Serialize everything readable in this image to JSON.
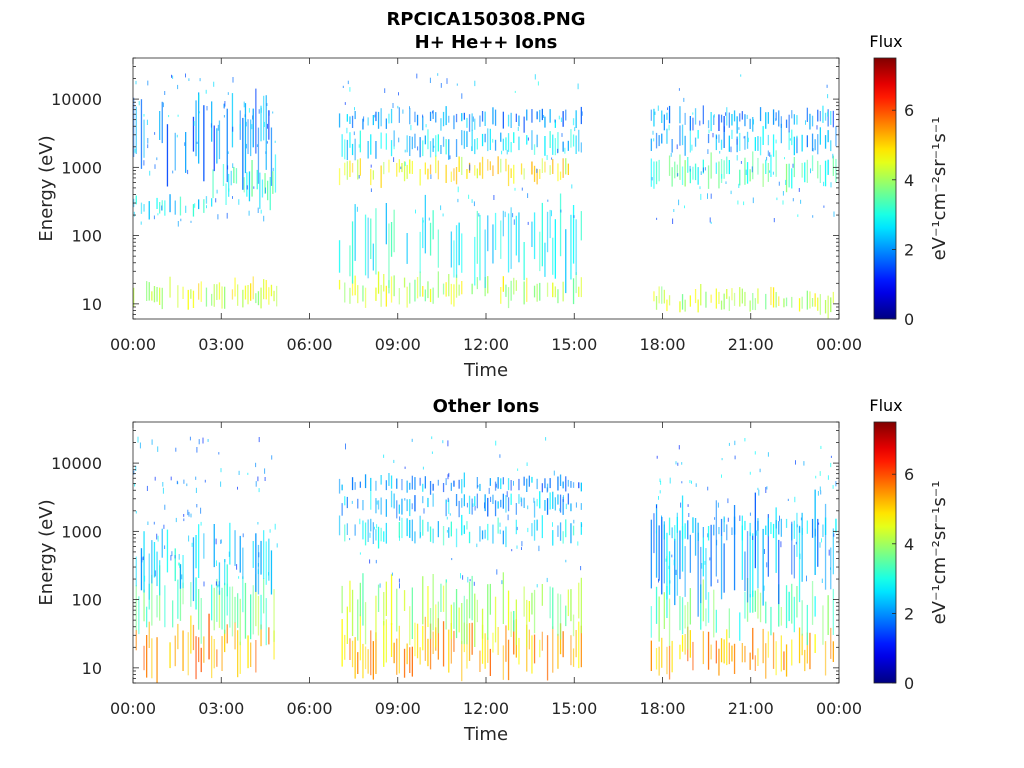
{
  "figure": {
    "title": "RPCICA150308.PNG"
  },
  "chart_data": [
    {
      "type": "heatmap",
      "title": "H+ He++ Ions",
      "xlabel": "Time",
      "ylabel": "Energy (eV)",
      "x_ticks": [
        "00:00",
        "03:00",
        "06:00",
        "09:00",
        "12:00",
        "15:00",
        "18:00",
        "21:00",
        "00:00"
      ],
      "xlim_hours": [
        0,
        24
      ],
      "y_scale": "log",
      "ylim": [
        6,
        40000
      ],
      "y_ticks": [
        10,
        100,
        1000,
        10000
      ],
      "y_tick_labels": [
        "10",
        "100",
        "1000",
        "10000"
      ],
      "data_intervals_hours": [
        [
          0.0,
          4.9
        ],
        [
          7.0,
          15.3
        ],
        [
          17.6,
          23.9
        ]
      ],
      "colorbar": {
        "title": "Flux",
        "label": "eV⁻¹cm⁻²sr⁻¹s⁻¹",
        "range": [
          0,
          7.5
        ],
        "ticks": [
          0,
          2,
          4,
          6
        ],
        "colormap": "jet"
      },
      "bands": [
        {
          "t0": 0.0,
          "t1": 4.9,
          "log_e_center": 1.15,
          "log_e_width": 0.12,
          "level": 4.4
        },
        {
          "t0": 0.0,
          "t1": 2.7,
          "log_e_center": 2.45,
          "log_e_width": 0.1,
          "level": 2.6
        },
        {
          "t0": 2.7,
          "t1": 4.9,
          "log_e_center": 2.75,
          "log_e_width": 0.2,
          "level": 3.0
        },
        {
          "t0": 0.0,
          "t1": 4.9,
          "log_e_center": 3.45,
          "log_e_width": 0.4,
          "level": 1.9
        },
        {
          "t0": 7.0,
          "t1": 15.3,
          "log_e_center": 1.2,
          "log_e_width": 0.14,
          "level": 4.2
        },
        {
          "t0": 7.0,
          "t1": 15.3,
          "log_e_center": 1.9,
          "log_e_width": 0.35,
          "level": 2.8
        },
        {
          "t0": 7.0,
          "t1": 15.3,
          "log_e_center": 2.95,
          "log_e_width": 0.12,
          "level": 4.7
        },
        {
          "t0": 7.0,
          "t1": 15.3,
          "log_e_center": 3.35,
          "log_e_width": 0.12,
          "level": 2.5
        },
        {
          "t0": 7.0,
          "t1": 15.3,
          "log_e_center": 3.7,
          "log_e_width": 0.1,
          "level": 2.1
        },
        {
          "t0": 17.6,
          "t1": 23.9,
          "log_e_center": 1.05,
          "log_e_width": 0.12,
          "level": 4.3
        },
        {
          "t0": 17.6,
          "t1": 23.9,
          "log_e_center": 2.95,
          "log_e_width": 0.15,
          "level": 3.3
        },
        {
          "t0": 17.6,
          "t1": 23.9,
          "log_e_center": 3.4,
          "log_e_width": 0.12,
          "level": 2.3
        },
        {
          "t0": 17.6,
          "t1": 23.9,
          "log_e_center": 3.7,
          "log_e_width": 0.1,
          "level": 2.0
        }
      ]
    },
    {
      "type": "heatmap",
      "title": "Other Ions",
      "xlabel": "Time",
      "ylabel": "Energy (eV)",
      "x_ticks": [
        "00:00",
        "03:00",
        "06:00",
        "09:00",
        "12:00",
        "15:00",
        "18:00",
        "21:00",
        "00:00"
      ],
      "xlim_hours": [
        0,
        24
      ],
      "y_scale": "log",
      "ylim": [
        6,
        40000
      ],
      "y_ticks": [
        10,
        100,
        1000,
        10000
      ],
      "y_tick_labels": [
        "10",
        "100",
        "1000",
        "10000"
      ],
      "data_intervals_hours": [
        [
          0.0,
          4.9
        ],
        [
          7.0,
          15.3
        ],
        [
          17.6,
          23.9
        ]
      ],
      "colorbar": {
        "title": "Flux",
        "label": "eV⁻¹cm⁻²sr⁻¹s⁻¹",
        "range": [
          0,
          7.5
        ],
        "ticks": [
          0,
          2,
          4,
          6
        ],
        "colormap": "jet"
      },
      "bands": [
        {
          "t0": 0.0,
          "t1": 4.9,
          "log_e_center": 1.3,
          "log_e_width": 0.25,
          "level": 5.4
        },
        {
          "t0": 0.0,
          "t1": 4.9,
          "log_e_center": 1.9,
          "log_e_width": 0.3,
          "level": 3.6
        },
        {
          "t0": 0.0,
          "t1": 4.9,
          "log_e_center": 2.55,
          "log_e_width": 0.35,
          "level": 2.6
        },
        {
          "t0": 7.0,
          "t1": 15.3,
          "log_e_center": 1.25,
          "log_e_width": 0.25,
          "level": 5.2
        },
        {
          "t0": 7.0,
          "t1": 15.3,
          "log_e_center": 1.85,
          "log_e_width": 0.3,
          "level": 4.0
        },
        {
          "t0": 7.0,
          "t1": 15.3,
          "log_e_center": 3.0,
          "log_e_width": 0.12,
          "level": 2.6
        },
        {
          "t0": 7.0,
          "t1": 15.3,
          "log_e_center": 3.4,
          "log_e_width": 0.1,
          "level": 2.2
        },
        {
          "t0": 7.0,
          "t1": 15.3,
          "log_e_center": 3.7,
          "log_e_width": 0.08,
          "level": 2.0
        },
        {
          "t0": 17.6,
          "t1": 23.9,
          "log_e_center": 1.2,
          "log_e_width": 0.2,
          "level": 5.3
        },
        {
          "t0": 17.6,
          "t1": 23.9,
          "log_e_center": 1.8,
          "log_e_width": 0.25,
          "level": 3.4
        },
        {
          "t0": 17.6,
          "t1": 23.9,
          "log_e_center": 2.7,
          "log_e_width": 0.45,
          "level": 2.2
        },
        {
          "t0": 17.6,
          "t1": 23.9,
          "log_e_center": 3.05,
          "log_e_width": 0.1,
          "level": 2.4
        }
      ]
    }
  ]
}
